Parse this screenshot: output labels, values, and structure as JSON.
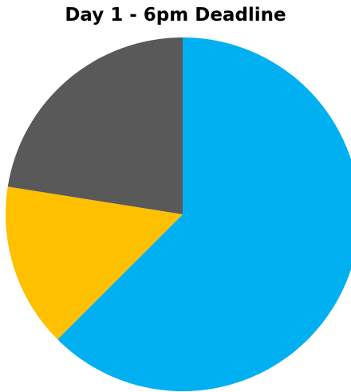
{
  "chart_data": {
    "type": "pie",
    "title": "Day 1 - 6pm Deadline",
    "slices": [
      {
        "value": 62.5,
        "color": "#00B0F0"
      },
      {
        "value": 15.0,
        "color": "#FFC000"
      },
      {
        "value": 22.5,
        "color": "#595959"
      }
    ],
    "start_angle_deg": 0,
    "direction": "clockwise",
    "legend": "none",
    "data_labels": false
  }
}
